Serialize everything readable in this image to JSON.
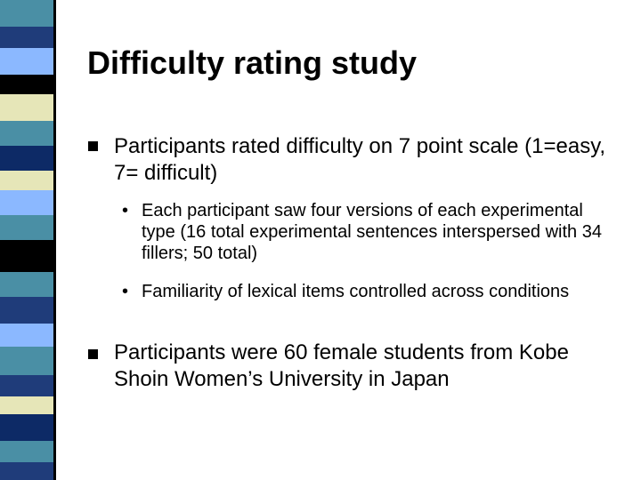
{
  "slide": {
    "title": "Difficulty rating study",
    "bullets": [
      {
        "text": "Participants rated difficulty on 7 point scale (1=easy, 7= difficult)",
        "sub_bullets": [
          "Each participant saw four versions of each experimental type (16 total experimental sentences interspersed with 34 fillers; 50 total)",
          "Familiarity of lexical items controlled across conditions"
        ]
      },
      {
        "text": "Participants were 60 female students from Kobe Shoin Women’s University in Japan",
        "sub_bullets": []
      }
    ],
    "sub_bullet_glyph": "•"
  },
  "theme": {
    "stripe_colors": [
      "#4a8fa5",
      "#1f3c7a",
      "#8bb8ff",
      "#e6e6b8",
      "#0d2a66",
      "#000000"
    ]
  }
}
